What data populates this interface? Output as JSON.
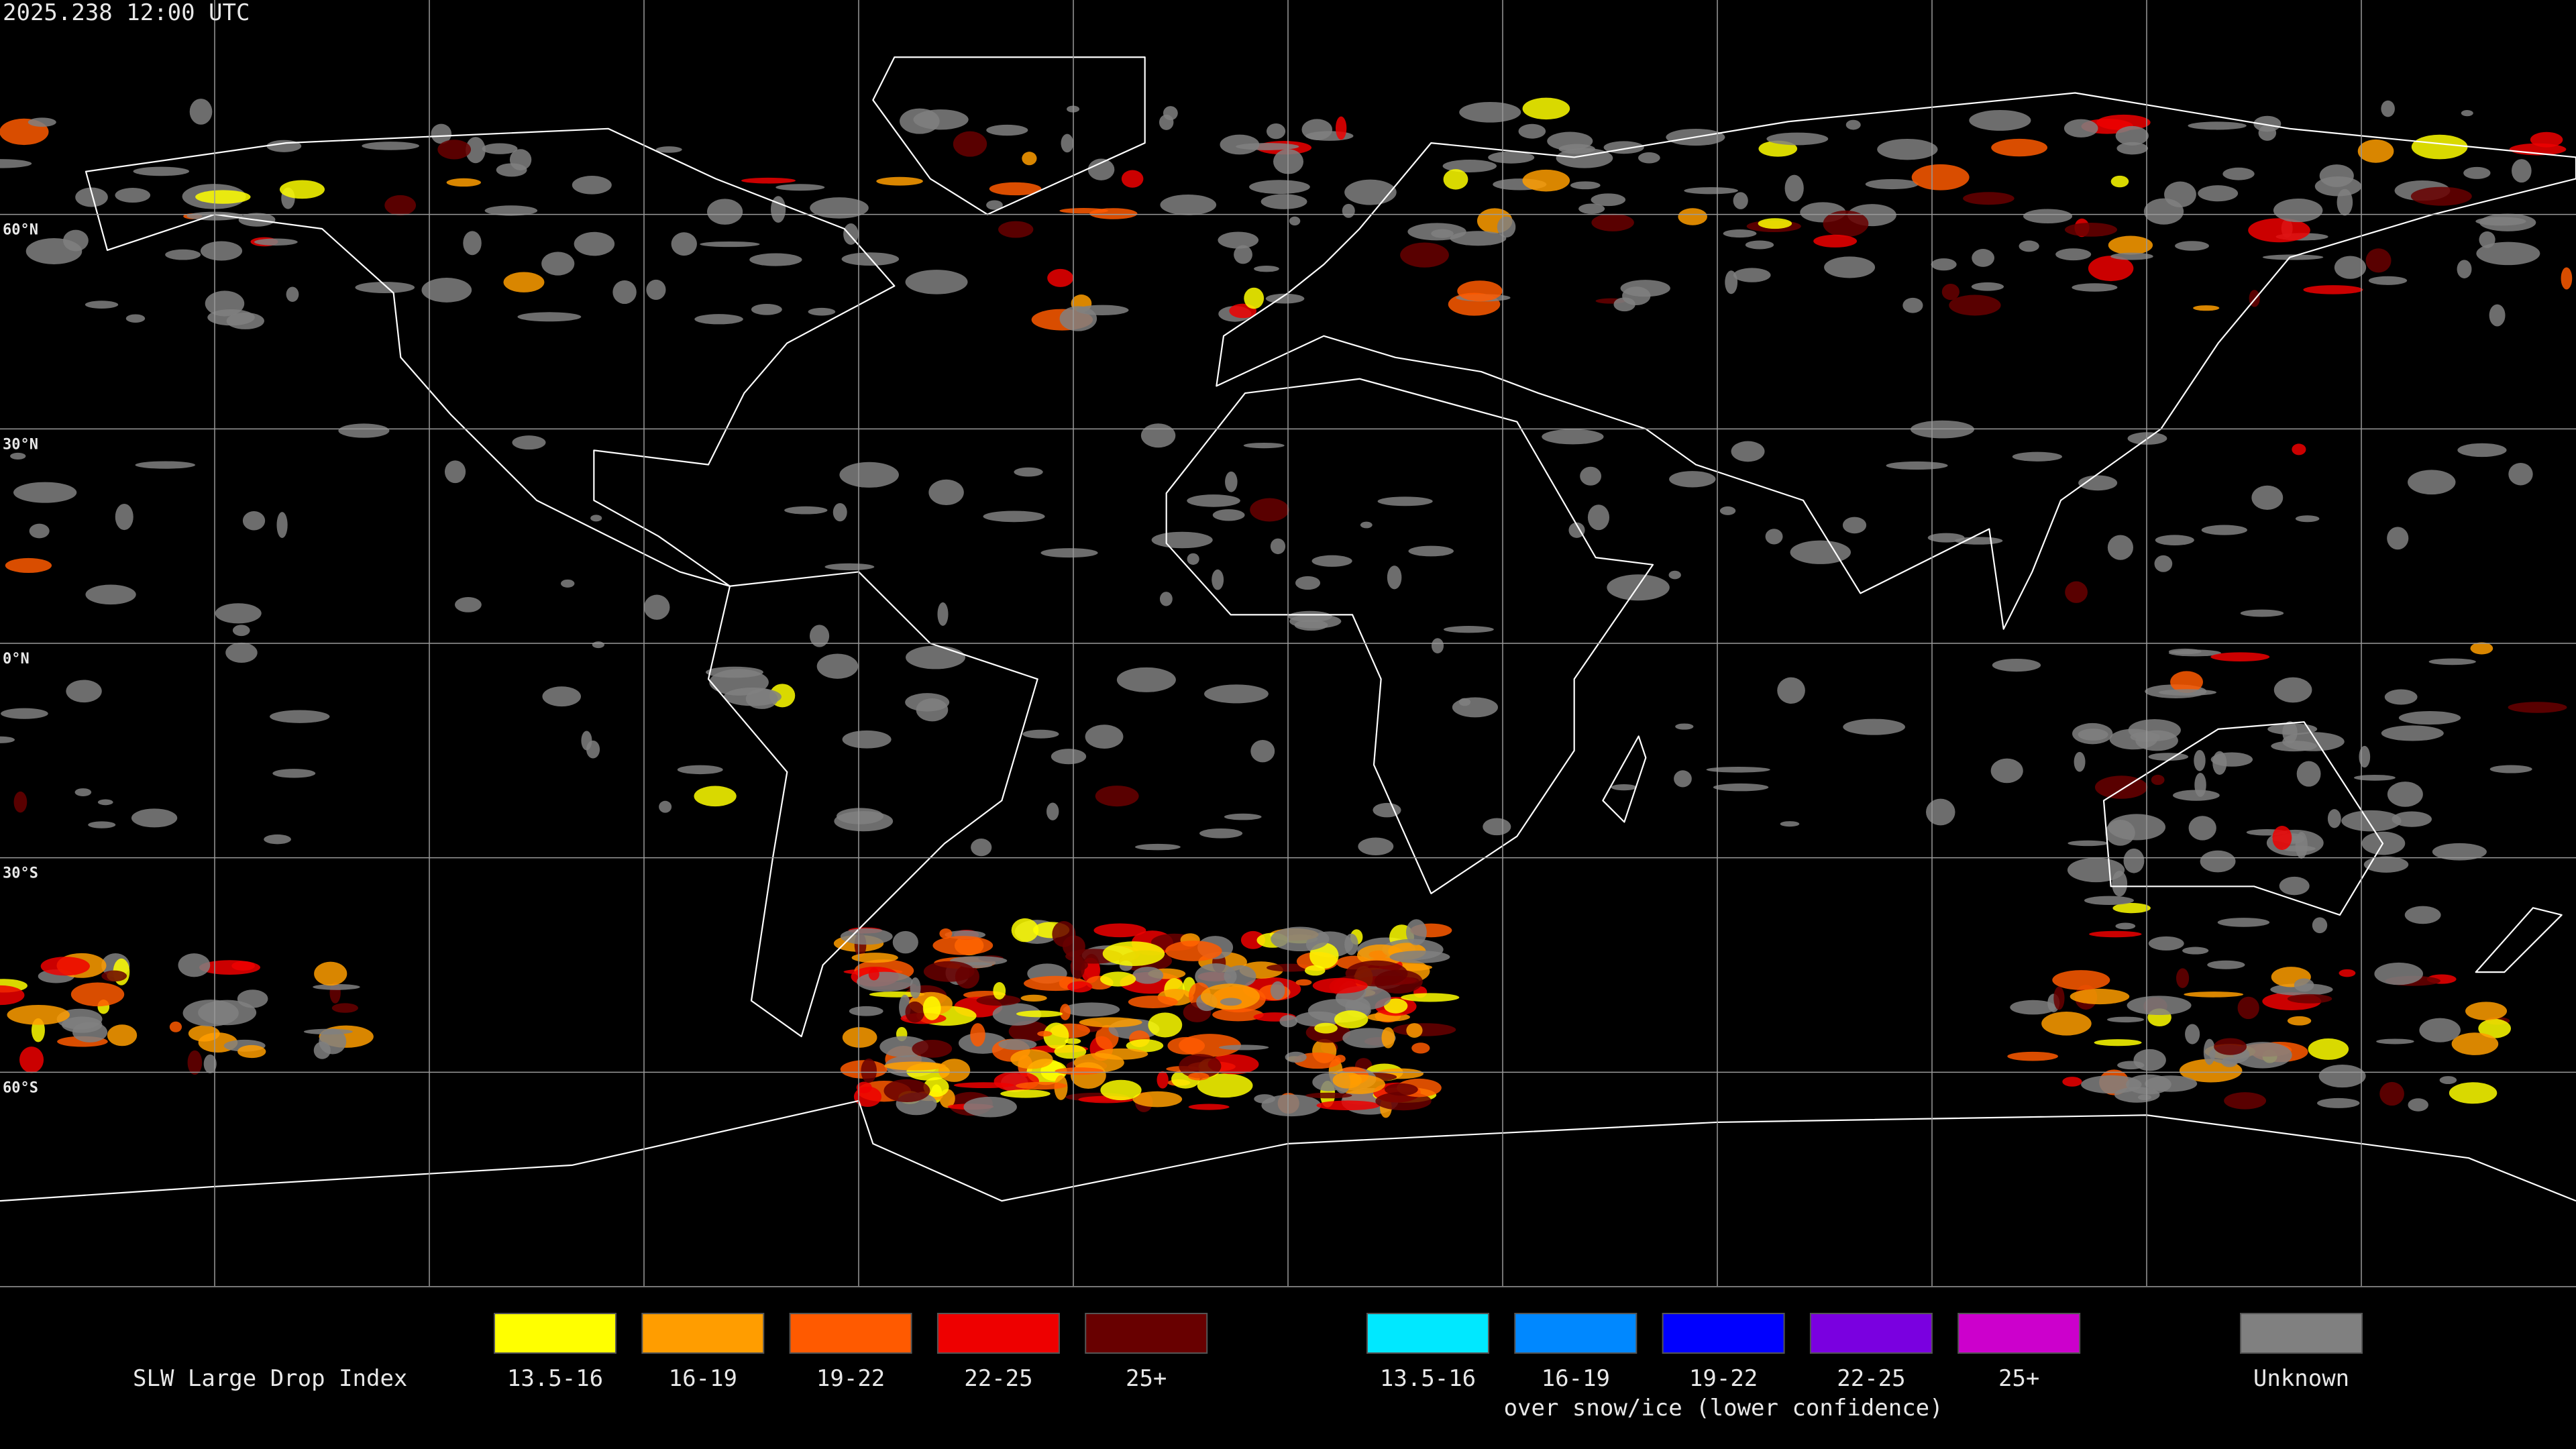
{
  "header": {
    "timestamp": "2025.238 12:00 UTC"
  },
  "map": {
    "lat_labels": [
      "60°N",
      "30°N",
      "0°N",
      "30°S",
      "60°S"
    ]
  },
  "legend": {
    "title": "SLW Large Drop Index",
    "groups": [
      {
        "items": [
          {
            "label": "13.5-16",
            "color": "#ffff00"
          },
          {
            "label": "16-19",
            "color": "#ff9d00"
          },
          {
            "label": "19-22",
            "color": "#ff5a00"
          },
          {
            "label": "22-25",
            "color": "#ee0000"
          },
          {
            "label": "25+",
            "color": "#680000"
          }
        ]
      },
      {
        "items": [
          {
            "label": "13.5-16",
            "color": "#00e8ff"
          },
          {
            "label": "16-19",
            "color": "#0088ff"
          },
          {
            "label": "19-22",
            "color": "#0000ff"
          },
          {
            "label": "22-25",
            "color": "#7a00e0"
          },
          {
            "label": "25+",
            "color": "#cc00cc"
          }
        ],
        "caption": "over snow/ice (lower confidence)"
      },
      {
        "items": [
          {
            "label": "Unknown",
            "color": "#808080"
          }
        ]
      }
    ]
  }
}
